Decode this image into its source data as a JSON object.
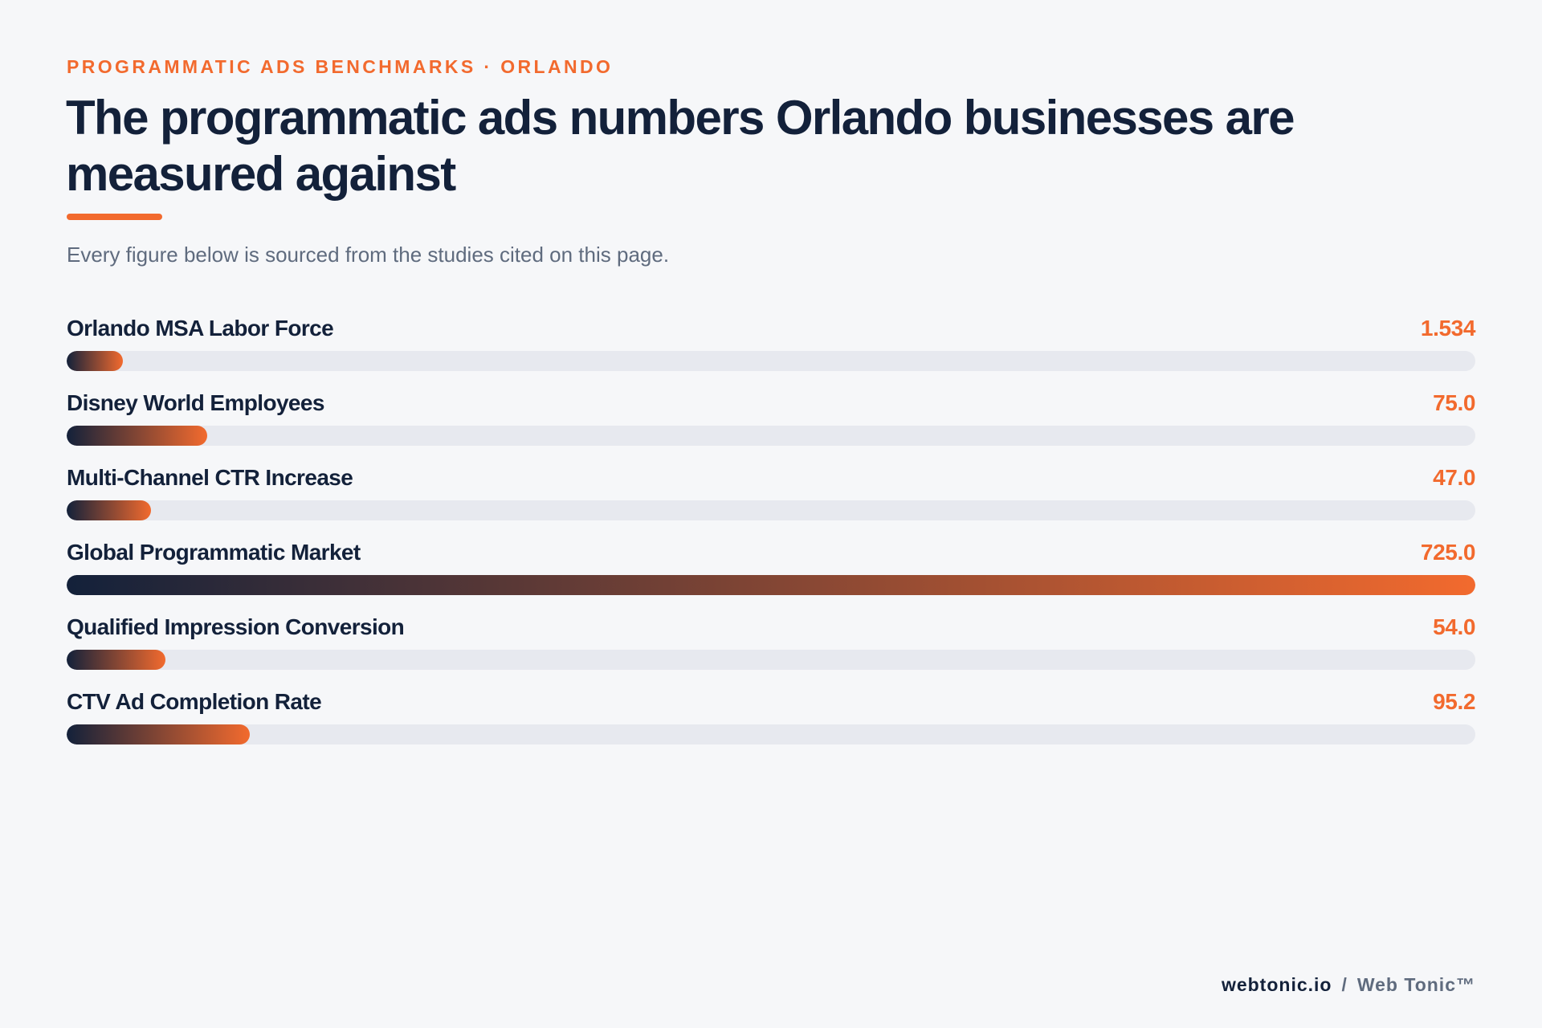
{
  "header": {
    "eyebrow": "PROGRAMMATIC ADS BENCHMARKS · ORLANDO",
    "title": "The programmatic ads numbers Orlando businesses are measured against",
    "subtitle": "Every figure below is sourced from the studies cited on this page."
  },
  "chart_data": {
    "type": "bar",
    "orientation": "horizontal",
    "title": "The programmatic ads numbers Orlando businesses are measured against",
    "subtitle": "Every figure below is sourced from the studies cited on this page.",
    "categories": [
      "Orlando MSA Labor Force",
      "Disney World Employees",
      "Multi-Channel CTR Increase",
      "Global Programmatic Market",
      "Qualified Impression Conversion",
      "CTV Ad Completion Rate"
    ],
    "values": [
      1.534,
      75.0,
      47.0,
      725.0,
      54.0,
      95.2
    ],
    "value_labels": [
      "1.534",
      "75.0",
      "47.0",
      "725.0",
      "54.0",
      "95.2"
    ],
    "bar_fractions": [
      0.04,
      0.1,
      0.06,
      1.0,
      0.07,
      0.13
    ],
    "xlim": [
      0,
      725.0
    ],
    "grid": false,
    "legend": "none"
  },
  "colors": {
    "background": "#f6f7f9",
    "accent": "#f26a2e",
    "navy": "#13213a",
    "muted": "#5f6b7e",
    "track": "#e7e9ef"
  },
  "footer": {
    "domain": "webtonic.io",
    "separator": "/",
    "brand": "Web Tonic™"
  }
}
